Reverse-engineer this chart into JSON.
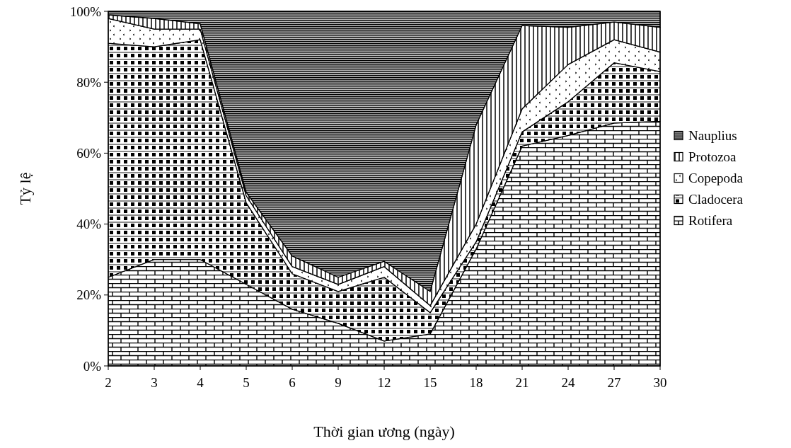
{
  "chart_data": {
    "type": "area",
    "stacked": true,
    "xlabel": "Thời gian ương (ngày)",
    "ylabel": "Tỷ lệ",
    "categories": [
      "2",
      "3",
      "4",
      "5",
      "6",
      "9",
      "12",
      "15",
      "18",
      "21",
      "24",
      "27",
      "30"
    ],
    "ylim": [
      0,
      100
    ],
    "yticks": [
      {
        "value": 0,
        "label": "0%"
      },
      {
        "value": 20,
        "label": "20%"
      },
      {
        "value": 40,
        "label": "40%"
      },
      {
        "value": 60,
        "label": "60%"
      },
      {
        "value": 80,
        "label": "80%"
      },
      {
        "value": 100,
        "label": "100%"
      }
    ],
    "legend": "right",
    "grid": false,
    "series": [
      {
        "name": "Rotifera",
        "color": "#000000",
        "values": [
          25,
          30,
          30,
          23,
          16,
          12,
          7,
          9,
          33,
          62,
          65,
          68.5,
          69
        ]
      },
      {
        "name": "Cladocera",
        "color": "#000000",
        "values": [
          66,
          60,
          62,
          23,
          10,
          9,
          18,
          6,
          2,
          4,
          9.5,
          17,
          14
        ]
      },
      {
        "name": "Copepoda",
        "color": "#000000",
        "values": [
          7,
          5,
          3,
          2,
          2,
          2,
          3,
          2,
          5,
          6.5,
          10.5,
          6.5,
          5.5
        ]
      },
      {
        "name": "Protozoa",
        "color": "#000000",
        "values": [
          1,
          3,
          1.5,
          1,
          3,
          2,
          1.5,
          4,
          28,
          23.5,
          10.5,
          5,
          7
        ]
      },
      {
        "name": "Nauplius",
        "color": "#000000",
        "values": [
          1,
          2,
          3.5,
          51,
          69,
          75,
          70.5,
          79,
          32,
          4,
          4.5,
          3,
          4.5
        ]
      }
    ]
  }
}
